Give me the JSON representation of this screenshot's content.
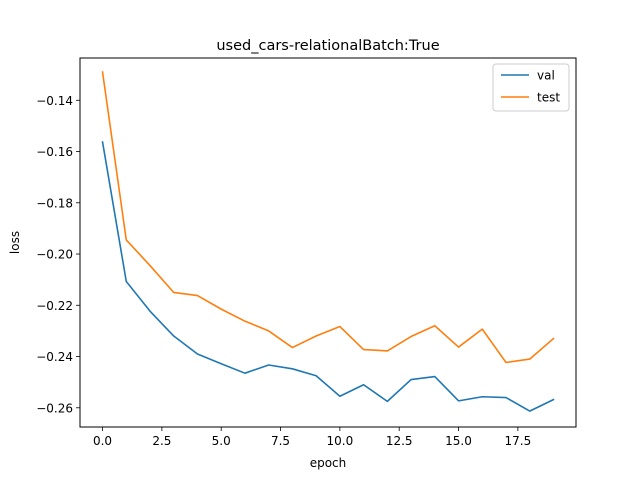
{
  "chart_data": {
    "type": "line",
    "title": "used_cars-relationalBatch:True",
    "xlabel": "epoch",
    "ylabel": "loss",
    "xlim": [
      -0.95,
      19.95
    ],
    "ylim": [
      -0.2675,
      -0.1235
    ],
    "xticks": [
      0.0,
      2.5,
      5.0,
      7.5,
      10.0,
      12.5,
      15.0,
      17.5
    ],
    "xtick_labels": [
      "0.0",
      "2.5",
      "5.0",
      "7.5",
      "10.0",
      "12.5",
      "15.0",
      "17.5"
    ],
    "yticks": [
      -0.26,
      -0.24,
      -0.22,
      -0.2,
      -0.18,
      -0.16,
      -0.14
    ],
    "ytick_labels": [
      "−0.26",
      "−0.24",
      "−0.22",
      "−0.20",
      "−0.18",
      "−0.16",
      "−0.14"
    ],
    "legend_position": "top-right",
    "grid": false,
    "x": [
      0,
      1,
      2,
      3,
      4,
      5,
      6,
      7,
      8,
      9,
      10,
      11,
      12,
      13,
      14,
      15,
      16,
      17,
      18,
      19
    ],
    "series": [
      {
        "name": "val",
        "color": "#1f77b4",
        "values": [
          -0.1563,
          -0.2107,
          -0.2223,
          -0.232,
          -0.239,
          -0.2428,
          -0.2465,
          -0.2433,
          -0.2448,
          -0.2475,
          -0.2555,
          -0.251,
          -0.2575,
          -0.249,
          -0.2478,
          -0.2573,
          -0.2557,
          -0.256,
          -0.2613,
          -0.2568
        ]
      },
      {
        "name": "test",
        "color": "#ff7f0e",
        "values": [
          -0.129,
          -0.1945,
          -0.2045,
          -0.215,
          -0.2162,
          -0.2215,
          -0.2262,
          -0.23,
          -0.2365,
          -0.232,
          -0.2283,
          -0.2373,
          -0.2378,
          -0.2322,
          -0.228,
          -0.2363,
          -0.2293,
          -0.2423,
          -0.241,
          -0.233
        ]
      }
    ]
  }
}
